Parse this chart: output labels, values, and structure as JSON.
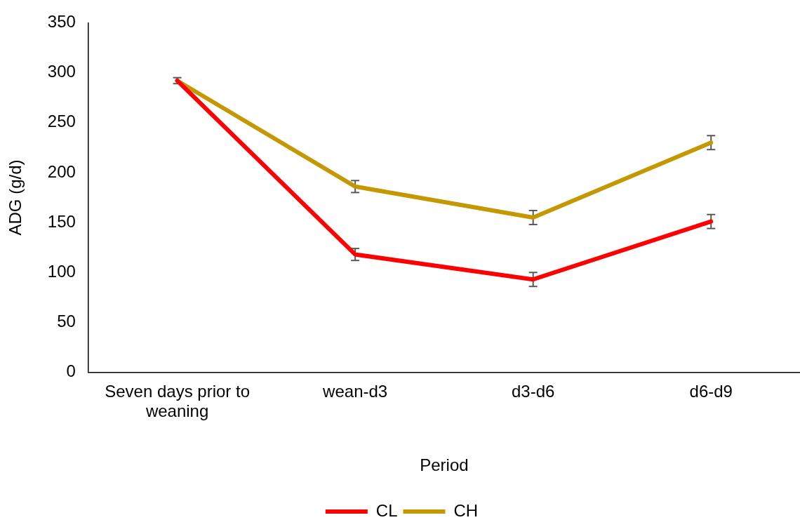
{
  "chart_data": {
    "type": "line",
    "xlabel": "Period",
    "ylabel": "ADG (g/d)",
    "categories": [
      "Seven days prior to weaning",
      "wean-d3",
      "d3-d6",
      "d6-d9"
    ],
    "series": [
      {
        "name": "CL",
        "color": "#ff0000",
        "values": [
          292,
          118,
          93,
          151
        ],
        "errors": [
          null,
          6,
          7,
          7
        ]
      },
      {
        "name": "CH",
        "color": "#c49800",
        "values": [
          292,
          186,
          155,
          230
        ],
        "errors": [
          3,
          6,
          7,
          7
        ]
      }
    ],
    "ylim": [
      0,
      350
    ],
    "yticks": [
      0,
      50,
      100,
      150,
      200,
      250,
      300,
      350
    ],
    "grid": false,
    "legend": "bottom",
    "marker": "none",
    "line_style": "solid"
  }
}
